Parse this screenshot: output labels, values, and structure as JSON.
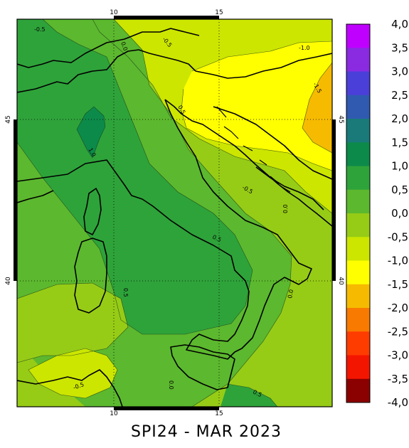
{
  "title": "SPI24 - MAR 2023",
  "lon_ticks": [
    "10",
    "15"
  ],
  "lat_ticks": [
    "45",
    "40"
  ],
  "colorbar": {
    "labels": [
      "4,0",
      "3,5",
      "3,0",
      "2,5",
      "2,0",
      "1,5",
      "1,0",
      "0,5",
      "0,0",
      "-0,5",
      "-1,0",
      "-1,5",
      "-2,0",
      "-2,5",
      "-3,0",
      "-3,5",
      "-4,0"
    ],
    "colors": [
      "#c000ff",
      "#8a2be2",
      "#4b3fd9",
      "#2f5ab0",
      "#1a7a7a",
      "#0c8a4a",
      "#2ea33a",
      "#5cb82e",
      "#96cc16",
      "#cce600",
      "#ffff00",
      "#f6bb00",
      "#f87a00",
      "#ff3c00",
      "#f41500",
      "#cc0000",
      "#8b0000"
    ]
  },
  "contour_labels": [
    {
      "id": "l1",
      "text": "-0.5"
    },
    {
      "id": "l2",
      "text": "-1.0"
    },
    {
      "id": "l3",
      "text": "-1.5"
    },
    {
      "id": "l4",
      "text": "-0.5"
    },
    {
      "id": "l5",
      "text": "0.0"
    },
    {
      "id": "l6",
      "text": "0.0"
    },
    {
      "id": "l7",
      "text": "1.0"
    },
    {
      "id": "l8",
      "text": "0.5"
    },
    {
      "id": "l9",
      "text": "0.5"
    },
    {
      "id": "l10",
      "text": "0.0"
    },
    {
      "id": "l11",
      "text": "0.5"
    },
    {
      "id": "l12",
      "text": "-0.5"
    },
    {
      "id": "l13",
      "text": "0.5"
    },
    {
      "id": "l14",
      "text": "-0.5"
    },
    {
      "id": "l15",
      "text": "0.0"
    }
  ]
}
